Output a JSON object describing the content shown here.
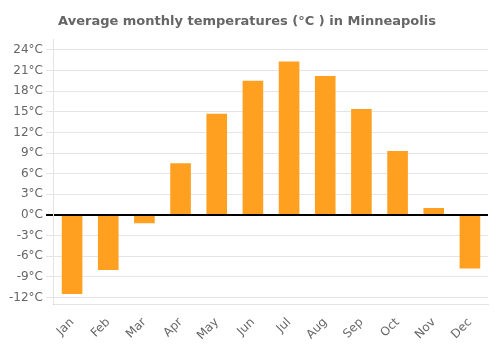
{
  "chart_data": {
    "type": "bar",
    "title": "Average monthly temperatures (°C ) in Minneapolis",
    "categories": [
      "Jan",
      "Feb",
      "Mar",
      "Apr",
      "May",
      "Jun",
      "Jul",
      "Aug",
      "Sep",
      "Oct",
      "Nov",
      "Dec"
    ],
    "values": [
      -11.5,
      -8.0,
      -1.2,
      7.5,
      14.7,
      19.5,
      22.3,
      20.2,
      15.4,
      9.3,
      1.0,
      -7.8
    ],
    "color": "#FFA020",
    "ylim": [
      -13,
      25.5
    ],
    "yticks": [
      {
        "value": -12,
        "label": "-12°C"
      },
      {
        "value": -9,
        "label": "-9°C"
      },
      {
        "value": -6,
        "label": "-6°C"
      },
      {
        "value": -3,
        "label": "-3°C"
      },
      {
        "value": 0,
        "label": "0°C"
      },
      {
        "value": 3,
        "label": "3°C"
      },
      {
        "value": 6,
        "label": "6°C"
      },
      {
        "value": 9,
        "label": "9°C"
      },
      {
        "value": 12,
        "label": "12°C"
      },
      {
        "value": 15,
        "label": "15°C"
      },
      {
        "value": 18,
        "label": "18°C"
      },
      {
        "value": 21,
        "label": "21°C"
      },
      {
        "value": 24,
        "label": "24°C"
      }
    ],
    "grid": true
  }
}
